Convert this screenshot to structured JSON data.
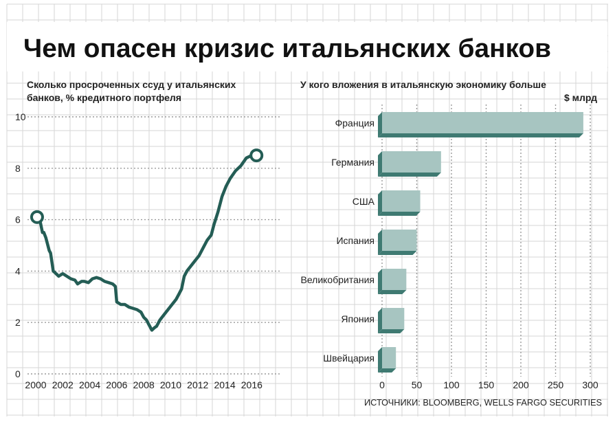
{
  "title": "Чем опасен кризис итальянских банков",
  "source": "ИСТОЧНИКИ: BLOOMBERG, WELLS FARGO SECURITIES",
  "colors": {
    "line": "#245d55",
    "bar_face": "#a7c5c1",
    "bar_side": "#3f7a72",
    "grid": "#999999",
    "background_grid": "#d5d5d5"
  },
  "chart_data": [
    {
      "type": "line",
      "title": "Сколько просроченных ссуд у итальянских банков, % кредитного портфеля",
      "title_lines": [
        "Сколько просроченных ссуд у итальянских",
        "банков, % кредитного портфеля"
      ],
      "xlabel": "",
      "ylabel": "",
      "xlim": [
        2000,
        2017
      ],
      "ylim": [
        0,
        10
      ],
      "x_ticks": [
        "2000",
        "2002",
        "2004",
        "2006",
        "2008",
        "2010",
        "2012",
        "2014",
        "2016"
      ],
      "y_ticks": [
        "0",
        "2",
        "4",
        "6",
        "8",
        "10"
      ],
      "grid": true,
      "series": [
        {
          "x": [
            2000.1,
            2000.3,
            2000.5,
            2000.6,
            2000.75,
            2001.0,
            2001.1,
            2001.3,
            2001.5,
            2001.7,
            2002.0,
            2002.3,
            2002.6,
            2002.9,
            2003.1,
            2003.4,
            2003.6,
            2003.9,
            2004.2,
            2004.5,
            2004.8,
            2005.1,
            2005.4,
            2005.7,
            2005.9,
            2006.0,
            2006.3,
            2006.6,
            2006.9,
            2007.2,
            2007.5,
            2007.8,
            2008.0,
            2008.2,
            2008.4,
            2008.6,
            2008.8,
            2008.95,
            2009.2,
            2009.5,
            2009.8,
            2010.1,
            2010.4,
            2010.6,
            2010.8,
            2011.0,
            2011.2,
            2011.5,
            2011.8,
            2012.1,
            2012.4,
            2012.7,
            2013.0,
            2013.2,
            2013.5,
            2013.8,
            2014.1,
            2014.4,
            2014.8,
            2015.2,
            2015.6,
            2016.0,
            2016.2,
            2016.35
          ],
          "y": [
            6.1,
            6.0,
            5.5,
            5.5,
            5.3,
            4.8,
            4.7,
            4.0,
            3.9,
            3.8,
            3.9,
            3.8,
            3.7,
            3.65,
            3.5,
            3.6,
            3.6,
            3.55,
            3.7,
            3.75,
            3.7,
            3.6,
            3.55,
            3.5,
            3.4,
            2.8,
            2.7,
            2.7,
            2.6,
            2.55,
            2.5,
            2.4,
            2.2,
            2.1,
            1.9,
            1.7,
            1.8,
            1.85,
            2.1,
            2.3,
            2.5,
            2.7,
            2.9,
            3.1,
            3.3,
            3.8,
            4.0,
            4.2,
            4.4,
            4.6,
            4.9,
            5.2,
            5.4,
            5.8,
            6.3,
            6.9,
            7.3,
            7.6,
            7.9,
            8.1,
            8.4,
            8.5,
            8.5,
            8.5
          ]
        }
      ],
      "endpoint_markers": true
    },
    {
      "type": "bar",
      "orientation": "horizontal",
      "title": "У кого вложения в итальянскую экономику больше",
      "unit_label": "$ млрд",
      "xlabel": "",
      "ylabel": "",
      "xlim": [
        0,
        300
      ],
      "x_ticks": [
        "0",
        "50",
        "100",
        "150",
        "200",
        "250",
        "300"
      ],
      "grid": true,
      "categories": [
        "Франция",
        "Германия",
        "США",
        "Испания",
        "Великобритания",
        "Япония",
        "Швейцария"
      ],
      "values": [
        290,
        85,
        55,
        50,
        35,
        32,
        20
      ]
    }
  ]
}
